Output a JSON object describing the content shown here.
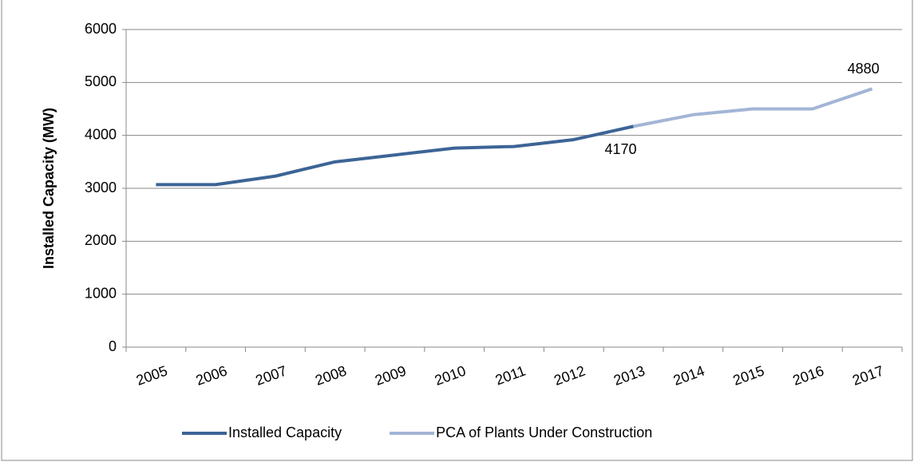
{
  "chart_data": {
    "type": "line",
    "y_label": "Installed Capacity (MW)",
    "categories": [
      "2005",
      "2006",
      "2007",
      "2008",
      "2009",
      "2010",
      "2011",
      "2012",
      "2013",
      "2014",
      "2015",
      "2016",
      "2017"
    ],
    "series": [
      {
        "name": "Installed Capacity",
        "color": "#3d6496",
        "values": [
          3070,
          3070,
          3230,
          3500,
          3630,
          3760,
          3790,
          3920,
          4170,
          null,
          null,
          null,
          null
        ]
      },
      {
        "name": "PCA of Plants Under Construction",
        "color": "#a3b5d6",
        "values": [
          null,
          null,
          null,
          null,
          null,
          null,
          null,
          null,
          4170,
          4390,
          4500,
          4500,
          4880
        ]
      }
    ],
    "ylim": [
      0,
      6000
    ],
    "yticks": [
      0,
      1000,
      2000,
      3000,
      4000,
      5000,
      6000
    ],
    "grid": true,
    "legend": "bottom"
  }
}
